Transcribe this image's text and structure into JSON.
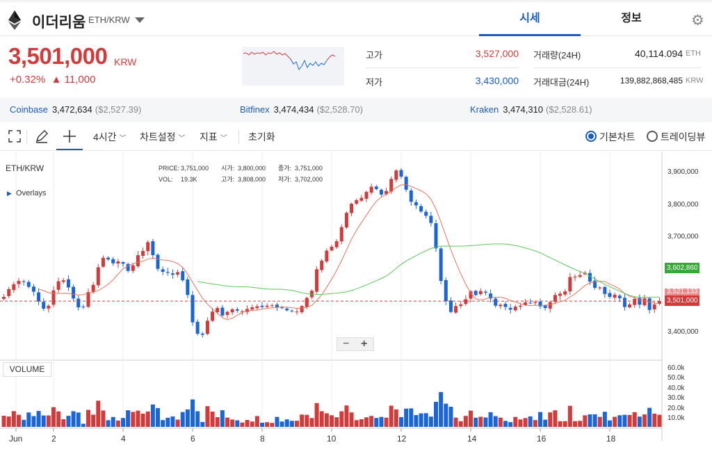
{
  "header": {
    "coin_name": "이더리움",
    "pair": "ETH/KRW",
    "tabs": [
      {
        "label": "시세"
      },
      {
        "label": "정보"
      }
    ]
  },
  "ticker": {
    "price": "3,501,000",
    "currency": "KRW",
    "change_pct": "+0.32%",
    "change_abs": "▲ 11,000",
    "high_label": "고가",
    "high": "3,527,000",
    "low_label": "저가",
    "low": "3,430,000",
    "volume_label": "거래량(24H)",
    "volume": "40,114.094",
    "volume_unit": "ETH",
    "amount_label": "거래대금(24H)",
    "amount": "139,882,868,485",
    "amount_unit": "KRW"
  },
  "exchanges": [
    {
      "name": "Coinbase",
      "krw": "3,472,634",
      "usd": "($2,527.39)"
    },
    {
      "name": "Bitfinex",
      "krw": "3,474,434",
      "usd": "($2,528.70)"
    },
    {
      "name": "Kraken",
      "krw": "3,474,310",
      "usd": "($2,528.61)"
    }
  ],
  "toolbar": {
    "interval": "4시간",
    "chart_settings": "차트설정",
    "indicators": "지표",
    "reset": "초기화",
    "basic_chart": "기본차트",
    "tradingview": "트레이딩뷰"
  },
  "chart": {
    "symbol": "ETH/KRW",
    "overlays": "Overlays",
    "volume_label": "VOLUME",
    "legend": {
      "price_lbl": "PRICE:",
      "price": "3,751,000",
      "open_lbl": "시가:",
      "open": "3,800,000",
      "close_lbl": "종가:",
      "close": "3,751,000",
      "vol_lbl": "VOL:",
      "vol": "19.3K",
      "high_lbl": "고가:",
      "high": "3,808,000",
      "low_lbl": "저가:",
      "low": "3,702,000"
    },
    "price_ticks": [
      "3,900,000",
      "3,800,000",
      "3,700,000",
      "3,400,000"
    ],
    "vol_ticks": [
      "60.0k",
      "50.0k",
      "40.0k",
      "30.0k",
      "20.0k",
      "10.0k"
    ],
    "date_ticks": [
      "Jun",
      "2",
      "4",
      "6",
      "8",
      "10",
      "12",
      "14",
      "16",
      "18"
    ],
    "badges": {
      "ma_green": "3,602,860",
      "ma_red": "3,521,133",
      "last": "3,501,000"
    },
    "zoom_minus": "−",
    "zoom_plus": "+",
    "colors": {
      "up": "#d33a3a",
      "down": "#1a66d9",
      "ma_short": "#e8735a",
      "ma_long": "#5ac85a"
    }
  },
  "chart_data": {
    "type": "candlestick",
    "ylim": [
      3320000,
      3960000
    ],
    "series": [
      {
        "name": "",
        "values": [
          3514000,
          3538000,
          3553000,
          3563000,
          3560000,
          3545000,
          3530000,
          3500000,
          3478000,
          3487000,
          3534000,
          3562000,
          3565000,
          3543000,
          3509000,
          3482000,
          3484000,
          3529000,
          3551000,
          3605000,
          3634000,
          3629000,
          3617000,
          3623000,
          3616000,
          3594000,
          3611000,
          3642000,
          3655000,
          3682000,
          3642000,
          3600000,
          3591000,
          3588000,
          3582000,
          3590000,
          3565000,
          3520000,
          3436000,
          3401000,
          3398000,
          3441000,
          3469000,
          3480000,
          3457000,
          3468000,
          3476000,
          3472000,
          3470000,
          3477000,
          3482000,
          3485000,
          3483000,
          3487000,
          3488000,
          3482000,
          3480000,
          3473000,
          3470000,
          3469000,
          3486000,
          3511000,
          3533000,
          3599000,
          3625000,
          3656000,
          3668000,
          3685000,
          3728000,
          3772000,
          3800000,
          3811000,
          3818000,
          3836000,
          3852000,
          3845000,
          3828000,
          3839000,
          3876000,
          3902000,
          3883000,
          3843000,
          3806000,
          3795000,
          3776000,
          3763000,
          3741000,
          3663000,
          3563000,
          3501000,
          3468000,
          3486000,
          3491000,
          3507000,
          3531000,
          3520000,
          3532000,
          3527000,
          3509000,
          3487000,
          3490000,
          3483000,
          3475000,
          3484000,
          3487000,
          3497000,
          3495000,
          3498000,
          3485000,
          3480000,
          3498000,
          3520000,
          3524000,
          3531000,
          3575000,
          3576000,
          3581000,
          3588000,
          3561000,
          3542000,
          3543000,
          3523000,
          3514000,
          3521000,
          3510000,
          3483000,
          3491000,
          3508000,
          3490000,
          3510000,
          3474000,
          3491000,
          3501000
        ]
      }
    ]
  }
}
